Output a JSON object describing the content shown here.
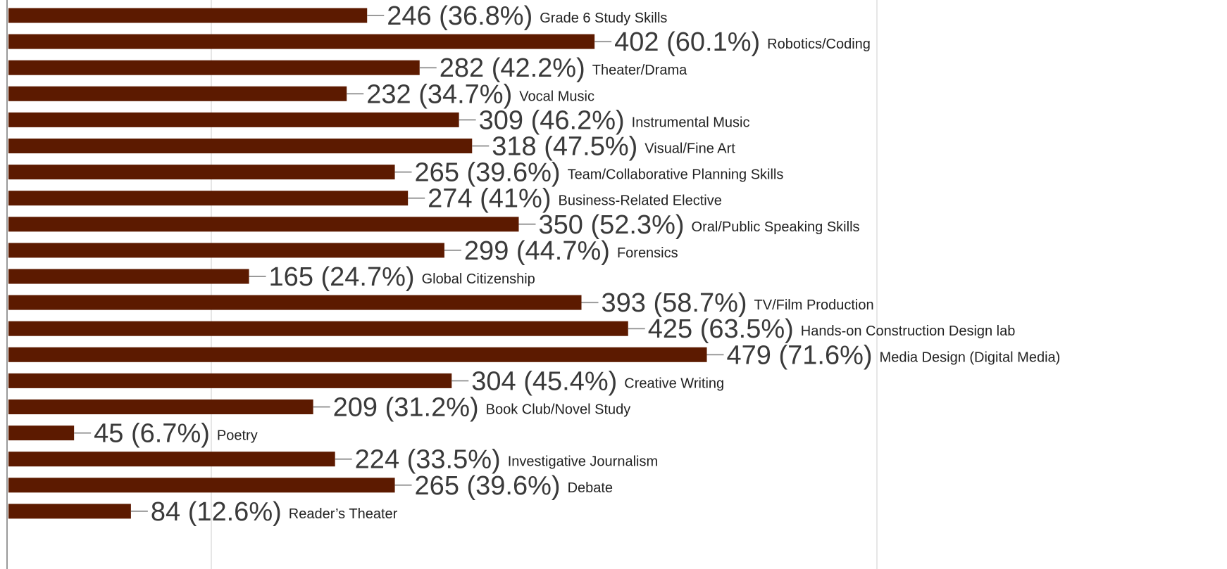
{
  "chart_data": {
    "type": "bar",
    "orientation": "horizontal",
    "grid": true,
    "categories": [
      "Grade 6 Study Skills",
      "Robotics/Coding",
      "Theater/Drama",
      "Vocal Music",
      "Instrumental Music",
      "Visual/Fine Art",
      "Team/Collaborative Planning Skills",
      "Business-Related Elective",
      "Oral/Public Speaking Skills",
      "Forensics",
      "Global Citizenship",
      "TV/Film Production",
      "Hands-on Construction Design lab",
      "Media Design (Digital Media)",
      "Creative Writing",
      "Book Club/Novel Study",
      "Poetry",
      "Investigative Journalism",
      "Debate",
      "Reader’s Theater"
    ],
    "values": [
      246,
      402,
      282,
      232,
      309,
      318,
      265,
      274,
      350,
      299,
      165,
      393,
      425,
      479,
      304,
      209,
      45,
      224,
      265,
      84
    ],
    "value_labels": [
      "246 (36.8%)",
      "402 (60.1%)",
      "282 (42.2%)",
      "232 (34.7%)",
      "309 (46.2%)",
      "318 (47.5%)",
      "265 (39.6%)",
      "274 (41%)",
      "350 (52.3%)",
      "299 (44.7%)",
      "165 (24.7%)",
      "393 (58.7%)",
      "425 (63.5%)",
      "479 (71.6%)",
      "304 (45.4%)",
      "209 (31.2%)",
      "45 (6.7%)",
      "224 (33.5%)",
      "265 (39.6%)",
      "84 (12.6%)"
    ],
    "colors": {
      "bar": "#5c1a00",
      "leader": "#9a9a9a",
      "axis": "#9a9a9a",
      "grid": "#e6e6e6"
    }
  }
}
